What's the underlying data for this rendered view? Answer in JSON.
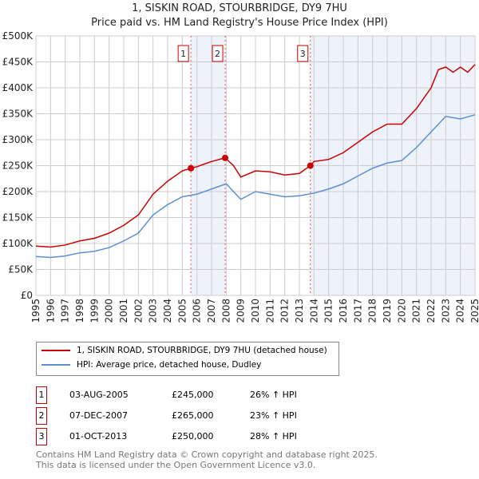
{
  "title": "1, SISKIN ROAD, STOURBRIDGE, DY9 7HU",
  "subtitle": "Price paid vs. HM Land Registry's House Price Index (HPI)",
  "chart_data": {
    "type": "line",
    "xlim": [
      1995,
      2025
    ],
    "ylim": [
      0,
      500000
    ],
    "yticks": [
      0,
      50000,
      100000,
      150000,
      200000,
      250000,
      300000,
      350000,
      400000,
      450000,
      500000
    ],
    "ytick_labels": [
      "£0",
      "£50K",
      "£100K",
      "£150K",
      "£200K",
      "£250K",
      "£300K",
      "£350K",
      "£400K",
      "£450K",
      "£500K"
    ],
    "xticks": [
      "1995",
      "1996",
      "1997",
      "1998",
      "1999",
      "2000",
      "2001",
      "2002",
      "2003",
      "2004",
      "2005",
      "2006",
      "2007",
      "2008",
      "2009",
      "2010",
      "2011",
      "2012",
      "2013",
      "2014",
      "2015",
      "2016",
      "2017",
      "2018",
      "2019",
      "2020",
      "2021",
      "2022",
      "2023",
      "2024",
      "2025"
    ],
    "series": [
      {
        "name": "1, SISKIN ROAD, STOURBRIDGE, DY9 7HU (detached house)",
        "color": "#cc0000",
        "x": [
          1995,
          1996,
          1997,
          1998,
          1999,
          2000,
          2001,
          2002,
          2003,
          2004,
          2005,
          2005.59,
          2006,
          2007,
          2007.93,
          2008.5,
          2009,
          2010,
          2011,
          2012,
          2013,
          2013.75,
          2014,
          2015,
          2016,
          2017,
          2018,
          2019,
          2020,
          2021,
          2022,
          2022.5,
          2023,
          2023.5,
          2024,
          2024.5,
          2025
        ],
        "y": [
          95000,
          93000,
          97000,
          105000,
          110000,
          120000,
          135000,
          155000,
          195000,
          220000,
          240000,
          245000,
          248000,
          258000,
          265000,
          250000,
          228000,
          240000,
          238000,
          232000,
          235000,
          250000,
          258000,
          262000,
          275000,
          295000,
          315000,
          330000,
          330000,
          360000,
          400000,
          435000,
          440000,
          430000,
          440000,
          430000,
          445000
        ]
      },
      {
        "name": "HPI: Average price, detached house, Dudley",
        "color": "#5b8fd4",
        "x": [
          1995,
          1996,
          1997,
          1998,
          1999,
          2000,
          2001,
          2002,
          2003,
          2004,
          2005,
          2006,
          2007,
          2008,
          2009,
          2010,
          2011,
          2012,
          2013,
          2014,
          2015,
          2016,
          2017,
          2018,
          2019,
          2020,
          2021,
          2022,
          2023,
          2024,
          2025
        ],
        "y": [
          75000,
          73000,
          76000,
          82000,
          85000,
          92000,
          105000,
          120000,
          155000,
          175000,
          190000,
          195000,
          205000,
          215000,
          185000,
          200000,
          195000,
          190000,
          192000,
          197000,
          205000,
          215000,
          230000,
          245000,
          255000,
          260000,
          285000,
          315000,
          345000,
          340000,
          348000
        ]
      }
    ],
    "sales": [
      {
        "label": "1",
        "x": 2005.59,
        "date": "03-AUG-2005",
        "price": "£245,000",
        "value": 245000,
        "hpi": "26% ↑ HPI"
      },
      {
        "label": "2",
        "x": 2007.93,
        "date": "07-DEC-2007",
        "price": "£265,000",
        "value": 265000,
        "hpi": "23% ↑ HPI"
      },
      {
        "label": "3",
        "x": 2013.75,
        "date": "01-OCT-2013",
        "price": "£250,000",
        "value": 250000,
        "hpi": "28% ↑ HPI"
      }
    ]
  },
  "footer": [
    "Contains HM Land Registry data © Crown copyright and database right 2025.",
    "This data is licensed under the Open Government Licence v3.0."
  ]
}
